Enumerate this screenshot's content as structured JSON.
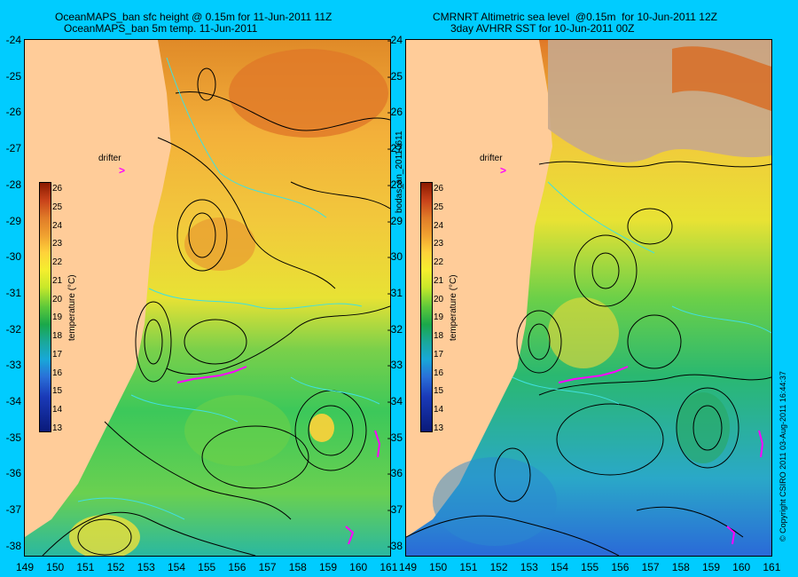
{
  "left_panel": {
    "title_line1": "OceanMAPS_ban sfc height @ 0.15m for 11-Jun-2011 11Z",
    "title_line2": "OceanMAPS_ban 5m temp. 11-Jun-2011"
  },
  "right_panel": {
    "title_line1": "CMRNRT Altimetric sea level  @0.15m  for 10-Jun-2011 12Z",
    "title_line2": "3day AVHRR SST for 10-Jun-2011 00Z"
  },
  "drifter_label": "drifter",
  "drifter_marker": ">",
  "colorbar": {
    "title": "temperature (°C)",
    "ticks": [
      "26",
      "25",
      "24",
      "23",
      "22",
      "21",
      "20",
      "19",
      "18",
      "17",
      "16",
      "15",
      "14",
      "13"
    ]
  },
  "y_ticks": [
    "-24",
    "-25",
    "-26",
    "-27",
    "-28",
    "-29",
    "-30",
    "-31",
    "-32",
    "-33",
    "-34",
    "-35",
    "-36",
    "-37",
    "-38"
  ],
  "x_ticks_left": [
    "149",
    "150",
    "151",
    "152",
    "153",
    "154",
    "155",
    "156",
    "157",
    "158",
    "159",
    "160",
    "161"
  ],
  "x_ticks_right": [
    "149",
    "150",
    "151",
    "152",
    "153",
    "154",
    "155",
    "156",
    "157",
    "158",
    "159",
    "160",
    "161"
  ],
  "middle_label": "bodas_an_20110611",
  "copyright": "© Copyright CSIRO 2011  03-Aug-2011 16:44:37",
  "colors": {
    "background": "#00ccff",
    "land": "#ffcc99",
    "drifter": "#ff00ff"
  }
}
